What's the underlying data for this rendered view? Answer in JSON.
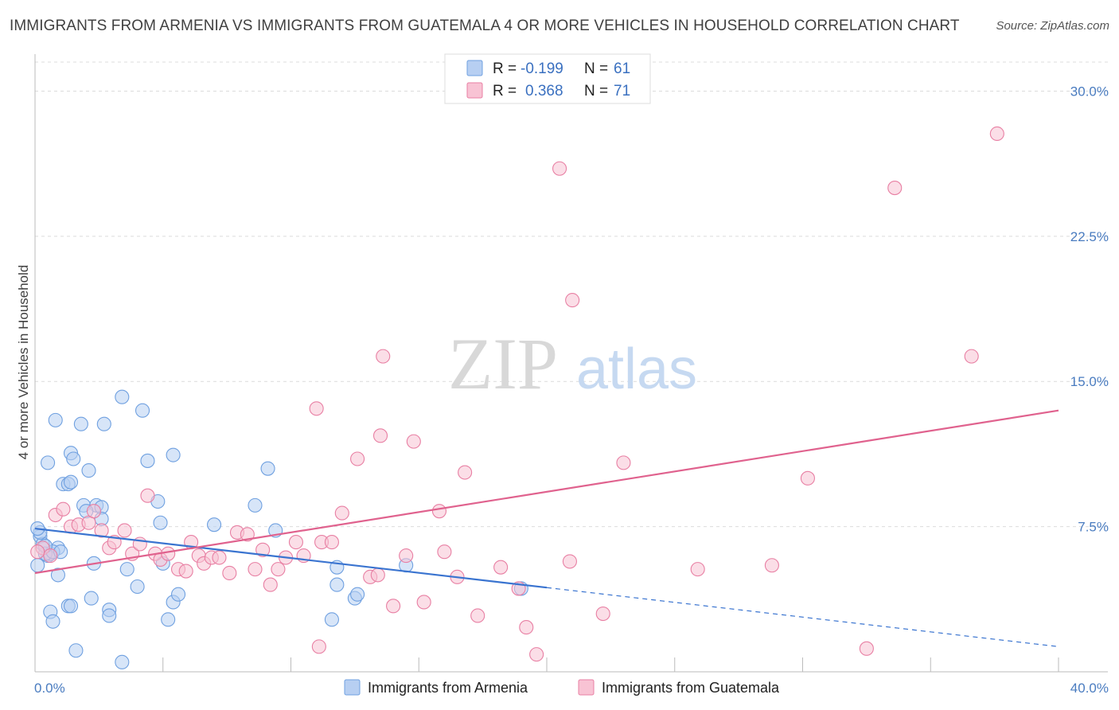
{
  "title": "IMMIGRANTS FROM ARMENIA VS IMMIGRANTS FROM GUATEMALA 4 OR MORE VEHICLES IN HOUSEHOLD CORRELATION CHART",
  "source": "Source: ZipAtlas.com",
  "watermark": {
    "zip": "ZIP",
    "atlas": "atlas"
  },
  "colors": {
    "armenia": "#6fa0e0",
    "armenia_fill": "#b7cff2",
    "guatemala": "#e87fa3",
    "guatemala_fill": "#f8c3d4",
    "armenia_line": "#3a74d0",
    "guatemala_line": "#e0628e",
    "tick": "#4a7cc0"
  },
  "legend": {
    "r_label": "R =",
    "n_label": "N =",
    "armenia": {
      "r": "-0.199",
      "n": "61"
    },
    "guatemala": {
      "r": "0.368",
      "n": "71"
    }
  },
  "chart_data": {
    "type": "scatter",
    "xlabel": "",
    "ylabel": "4 or more Vehicles in Household",
    "xlim": [
      0,
      40
    ],
    "ylim": [
      0,
      31.5
    ],
    "x_tick_labels": [
      "0.0%",
      "40.0%"
    ],
    "y_ticks": [
      7.5,
      15.0,
      22.5,
      30.0
    ],
    "y_tick_labels": [
      "7.5%",
      "15.0%",
      "22.5%",
      "30.0%"
    ],
    "series": [
      {
        "name": "Immigrants from Armenia",
        "r": -0.199,
        "n": 61,
        "trend": {
          "x0": 0,
          "y0": 7.4,
          "x1": 20.0,
          "y1": 4.35,
          "dash_x1": 40,
          "dash_y1": 1.3
        },
        "points": [
          [
            0.2,
            7.0
          ],
          [
            0.3,
            6.6
          ],
          [
            0.2,
            7.2
          ],
          [
            0.5,
            6.0
          ],
          [
            0.6,
            6.1
          ],
          [
            0.9,
            6.4
          ],
          [
            0.4,
            6.1
          ],
          [
            0.7,
            6.2
          ],
          [
            1.0,
            6.2
          ],
          [
            0.1,
            5.5
          ],
          [
            0.8,
            13.0
          ],
          [
            1.4,
            11.3
          ],
          [
            1.5,
            11.0
          ],
          [
            0.5,
            10.8
          ],
          [
            1.1,
            9.7
          ],
          [
            1.3,
            9.7
          ],
          [
            1.4,
            9.8
          ],
          [
            1.8,
            12.8
          ],
          [
            2.1,
            10.4
          ],
          [
            1.9,
            8.6
          ],
          [
            2.4,
            8.6
          ],
          [
            2.6,
            8.5
          ],
          [
            2.0,
            8.3
          ],
          [
            2.6,
            7.9
          ],
          [
            0.9,
            5.0
          ],
          [
            2.3,
            5.6
          ],
          [
            1.3,
            3.4
          ],
          [
            1.4,
            3.4
          ],
          [
            2.2,
            3.8
          ],
          [
            2.9,
            3.2
          ],
          [
            2.9,
            2.9
          ],
          [
            0.6,
            3.1
          ],
          [
            0.7,
            2.6
          ],
          [
            1.6,
            1.1
          ],
          [
            3.4,
            0.5
          ],
          [
            2.7,
            12.8
          ],
          [
            3.4,
            14.2
          ],
          [
            4.2,
            13.5
          ],
          [
            4.4,
            10.9
          ],
          [
            4.8,
            8.8
          ],
          [
            5.4,
            11.2
          ],
          [
            4.9,
            7.7
          ],
          [
            3.6,
            5.3
          ],
          [
            4.0,
            4.4
          ],
          [
            5.0,
            5.6
          ],
          [
            5.4,
            3.6
          ],
          [
            5.6,
            4.0
          ],
          [
            5.2,
            2.7
          ],
          [
            7.0,
            7.6
          ],
          [
            8.6,
            8.6
          ],
          [
            9.1,
            10.5
          ],
          [
            9.4,
            7.3
          ],
          [
            11.8,
            5.4
          ],
          [
            11.8,
            4.5
          ],
          [
            12.5,
            3.8
          ],
          [
            12.6,
            4.0
          ],
          [
            11.6,
            2.7
          ],
          [
            14.5,
            5.5
          ],
          [
            19.0,
            4.3
          ],
          [
            0.1,
            7.4
          ],
          [
            0.4,
            6.5
          ]
        ]
      },
      {
        "name": "Immigrants from Guatemala",
        "r": 0.368,
        "n": 71,
        "trend": {
          "x0": 0,
          "y0": 5.1,
          "x1": 40,
          "y1": 13.5
        },
        "points": [
          [
            0.3,
            6.4
          ],
          [
            0.6,
            6.0
          ],
          [
            0.8,
            8.1
          ],
          [
            1.1,
            8.4
          ],
          [
            1.4,
            7.5
          ],
          [
            1.7,
            7.6
          ],
          [
            2.1,
            7.7
          ],
          [
            2.3,
            8.3
          ],
          [
            2.6,
            7.3
          ],
          [
            2.9,
            6.4
          ],
          [
            3.1,
            6.7
          ],
          [
            3.5,
            7.3
          ],
          [
            3.8,
            6.1
          ],
          [
            4.1,
            6.6
          ],
          [
            4.4,
            9.1
          ],
          [
            4.7,
            6.1
          ],
          [
            4.9,
            5.8
          ],
          [
            5.2,
            6.1
          ],
          [
            5.6,
            5.3
          ],
          [
            5.9,
            5.2
          ],
          [
            6.1,
            6.7
          ],
          [
            6.4,
            6.0
          ],
          [
            6.6,
            5.6
          ],
          [
            6.9,
            5.9
          ],
          [
            7.2,
            5.9
          ],
          [
            7.6,
            5.1
          ],
          [
            7.9,
            7.2
          ],
          [
            8.3,
            7.1
          ],
          [
            8.6,
            5.3
          ],
          [
            8.9,
            6.3
          ],
          [
            9.2,
            4.5
          ],
          [
            9.5,
            5.3
          ],
          [
            9.8,
            5.9
          ],
          [
            10.2,
            6.7
          ],
          [
            10.5,
            6.0
          ],
          [
            11.0,
            13.6
          ],
          [
            11.2,
            6.7
          ],
          [
            11.6,
            6.7
          ],
          [
            12.0,
            8.2
          ],
          [
            12.6,
            11.0
          ],
          [
            13.1,
            4.9
          ],
          [
            13.4,
            5.0
          ],
          [
            13.6,
            16.3
          ],
          [
            13.5,
            12.2
          ],
          [
            14.0,
            3.4
          ],
          [
            14.5,
            6.0
          ],
          [
            14.8,
            11.9
          ],
          [
            15.2,
            3.6
          ],
          [
            15.8,
            8.3
          ],
          [
            16.0,
            6.2
          ],
          [
            16.5,
            4.9
          ],
          [
            16.8,
            10.3
          ],
          [
            17.3,
            2.9
          ],
          [
            18.2,
            5.4
          ],
          [
            18.9,
            4.3
          ],
          [
            19.2,
            2.3
          ],
          [
            19.6,
            0.9
          ],
          [
            20.5,
            26.0
          ],
          [
            20.9,
            5.7
          ],
          [
            21.0,
            19.2
          ],
          [
            22.2,
            3.0
          ],
          [
            23.0,
            10.8
          ],
          [
            25.9,
            5.3
          ],
          [
            28.8,
            5.5
          ],
          [
            30.2,
            10.0
          ],
          [
            32.5,
            1.2
          ],
          [
            33.6,
            25.0
          ],
          [
            36.6,
            16.3
          ],
          [
            37.6,
            27.8
          ],
          [
            11.1,
            1.3
          ],
          [
            0.1,
            6.2
          ]
        ]
      }
    ]
  },
  "bottom_legend": {
    "armenia": "Immigrants from Armenia",
    "guatemala": "Immigrants from Guatemala"
  }
}
